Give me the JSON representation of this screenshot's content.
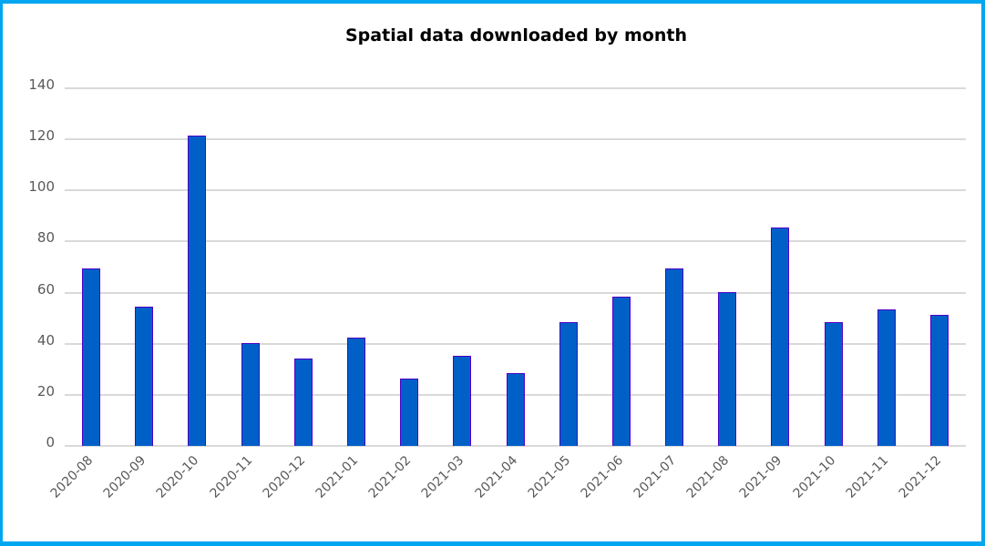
{
  "chart_data": {
    "type": "bar",
    "title": "Spatial data downloaded by month",
    "xlabel": "",
    "ylabel": "",
    "ylim": [
      0,
      140
    ],
    "yticks": [
      0,
      20,
      40,
      60,
      80,
      100,
      120,
      140
    ],
    "grid": true,
    "legend": null,
    "categories": [
      "2020-08",
      "2020-09",
      "2020-10",
      "2020-11",
      "2020-12",
      "2021-01",
      "2021-02",
      "2021-03",
      "2021-04",
      "2021-05",
      "2021-06",
      "2021-07",
      "2021-08",
      "2021-09",
      "2021-10",
      "2021-11",
      "2021-12"
    ],
    "values": [
      69,
      54,
      121,
      40,
      34,
      42,
      26,
      35,
      28,
      48,
      58,
      69,
      60,
      85,
      48,
      53,
      51
    ],
    "colors": {
      "bar_fill": "#0060c8",
      "bar_edge": "#5000c8",
      "grid": "#d9d9d9",
      "frame": "#00a6ef"
    }
  }
}
